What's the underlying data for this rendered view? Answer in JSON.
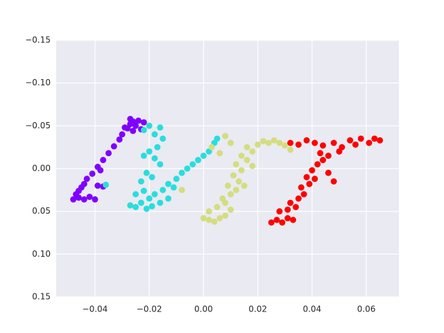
{
  "chart_data": {
    "type": "scatter",
    "xlim": [
      -0.0543,
      0.072
    ],
    "ylim": [
      -0.15,
      0.15
    ],
    "y_inverted": true,
    "grid": true,
    "xticks": [
      {
        "value": -0.04,
        "label": "−0.04"
      },
      {
        "value": -0.02,
        "label": "−0.02"
      },
      {
        "value": 0,
        "label": "0.00"
      },
      0.02,
      0.04,
      0.06
    ],
    "yticks": [
      {
        "value": -0.15,
        "label": "−0.15"
      },
      {
        "value": -0.1,
        "label": "−0.10"
      },
      {
        "value": -0.05,
        "label": "−0.05"
      },
      {
        "value": 0,
        "label": "0.00"
      },
      0.05,
      {
        "value": 0.1,
        "label": "0.10"
      },
      0.15
    ],
    "series": [
      {
        "color": "#8000ff",
        "x": [
          -0.048,
          -0.046,
          -0.044,
          -0.042,
          -0.04,
          -0.046,
          -0.045,
          -0.044,
          -0.039,
          -0.037,
          -0.043,
          -0.041,
          -0.039,
          -0.037,
          -0.035,
          -0.033,
          -0.031,
          -0.03,
          -0.028,
          -0.027,
          -0.026,
          -0.024,
          -0.022,
          -0.025,
          -0.023,
          -0.026,
          -0.029,
          -0.027,
          -0.047,
          -0.038
        ],
        "values": [
          0.036,
          0.034,
          0.036,
          0.033,
          0.036,
          0.026,
          0.022,
          0.018,
          0.02,
          0.021,
          0.012,
          0.006,
          -0.002,
          -0.01,
          -0.018,
          -0.026,
          -0.034,
          -0.04,
          -0.047,
          -0.052,
          -0.055,
          -0.056,
          -0.054,
          -0.05,
          -0.046,
          -0.044,
          -0.048,
          -0.058,
          0.03,
          0.002
        ]
      },
      {
        "color": "#2adddd",
        "x": [
          -0.036,
          -0.027,
          -0.025,
          -0.023,
          -0.021,
          -0.019,
          -0.025,
          -0.022,
          -0.02,
          -0.018,
          -0.023,
          -0.021,
          -0.019,
          -0.022,
          -0.02,
          -0.018,
          -0.016,
          -0.022,
          -0.02,
          -0.018,
          -0.016,
          -0.015,
          -0.017,
          -0.015,
          -0.013,
          -0.011,
          -0.01,
          -0.008,
          -0.006,
          -0.004,
          -0.002,
          0.0,
          0.002,
          0.004,
          0.005,
          -0.013,
          -0.016
        ],
        "values": [
          0.019,
          0.043,
          0.045,
          0.04,
          0.047,
          0.044,
          0.03,
          0.026,
          0.035,
          0.03,
          0.015,
          0.005,
          0.01,
          -0.015,
          -0.02,
          -0.012,
          -0.005,
          -0.045,
          -0.05,
          -0.04,
          -0.048,
          -0.035,
          -0.025,
          0.025,
          0.018,
          0.022,
          0.012,
          0.005,
          0.0,
          -0.005,
          -0.01,
          -0.015,
          -0.02,
          -0.03,
          -0.035,
          0.035,
          0.04
        ]
      },
      {
        "color": "#d4dd80",
        "x": [
          -0.008,
          0.0,
          0.002,
          0.004,
          0.006,
          0.008,
          0.002,
          0.005,
          0.008,
          0.01,
          0.007,
          0.01,
          0.012,
          0.009,
          0.013,
          0.011,
          0.014,
          0.012,
          0.016,
          0.014,
          0.018,
          0.016,
          0.02,
          0.022,
          0.024,
          0.026,
          0.028,
          0.03,
          0.032,
          0.008,
          0.01,
          0.003,
          0.015,
          0.018,
          0.006
        ],
        "values": [
          0.025,
          0.058,
          0.06,
          0.062,
          0.058,
          0.055,
          0.05,
          0.045,
          0.04,
          0.048,
          0.035,
          0.03,
          0.025,
          0.02,
          0.015,
          0.008,
          0.002,
          -0.005,
          -0.01,
          -0.015,
          -0.02,
          -0.025,
          -0.028,
          -0.032,
          -0.03,
          -0.033,
          -0.03,
          -0.027,
          -0.022,
          -0.038,
          -0.03,
          -0.025,
          0.02,
          -0.003,
          -0.018
        ]
      },
      {
        "color": "#ff0000",
        "x": [
          0.025,
          0.027,
          0.029,
          0.031,
          0.033,
          0.028,
          0.031,
          0.034,
          0.032,
          0.035,
          0.037,
          0.036,
          0.039,
          0.038,
          0.041,
          0.04,
          0.042,
          0.044,
          0.043,
          0.046,
          0.032,
          0.035,
          0.038,
          0.041,
          0.044,
          0.048,
          0.051,
          0.054,
          0.056,
          0.058,
          0.061,
          0.063,
          0.065,
          0.05,
          0.046,
          0.048
        ],
        "values": [
          0.063,
          0.06,
          0.063,
          0.058,
          0.06,
          0.05,
          0.048,
          0.045,
          0.04,
          0.035,
          0.03,
          0.022,
          0.018,
          0.01,
          0.012,
          0.002,
          -0.005,
          -0.01,
          -0.018,
          -0.015,
          -0.03,
          -0.028,
          -0.033,
          -0.03,
          -0.027,
          -0.03,
          -0.025,
          -0.033,
          -0.028,
          -0.035,
          -0.03,
          -0.035,
          -0.033,
          -0.02,
          0.005,
          0.015
        ]
      }
    ]
  }
}
